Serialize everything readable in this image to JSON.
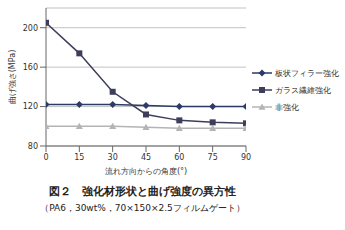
{
  "chart_data": {
    "type": "line",
    "title": "図２　強化材形状と曲げ強度の異方性",
    "subtitle": "（PA6，30wt%，70×150×2.5フィルムゲート）",
    "x_label": "流れ方向からの角度(°)",
    "y_label": "曲げ強さ(MPa)",
    "x": [
      0,
      15,
      30,
      45,
      60,
      75,
      90
    ],
    "xlim": [
      0,
      90
    ],
    "xticks": [
      0,
      15,
      30,
      45,
      60,
      75,
      90
    ],
    "ylim": [
      80,
      220
    ],
    "yticks": [
      80,
      120,
      160,
      200
    ],
    "grid": true,
    "legend": "right",
    "series": [
      {
        "name": "板状フィラー強化",
        "color": "#2b3a67",
        "marker": "diamond",
        "values": [
          122,
          122,
          122,
          121,
          120,
          120,
          120
        ]
      },
      {
        "name": "ガラス繊維強化",
        "color": "#3d3d5c",
        "marker": "square",
        "values": [
          205,
          174,
          135,
          112,
          106,
          104,
          103
        ]
      },
      {
        "name": "非強化",
        "color": "#b4b4b4",
        "marker": "triangle",
        "values": [
          100,
          100,
          100,
          99,
          98,
          98,
          98
        ]
      }
    ]
  }
}
